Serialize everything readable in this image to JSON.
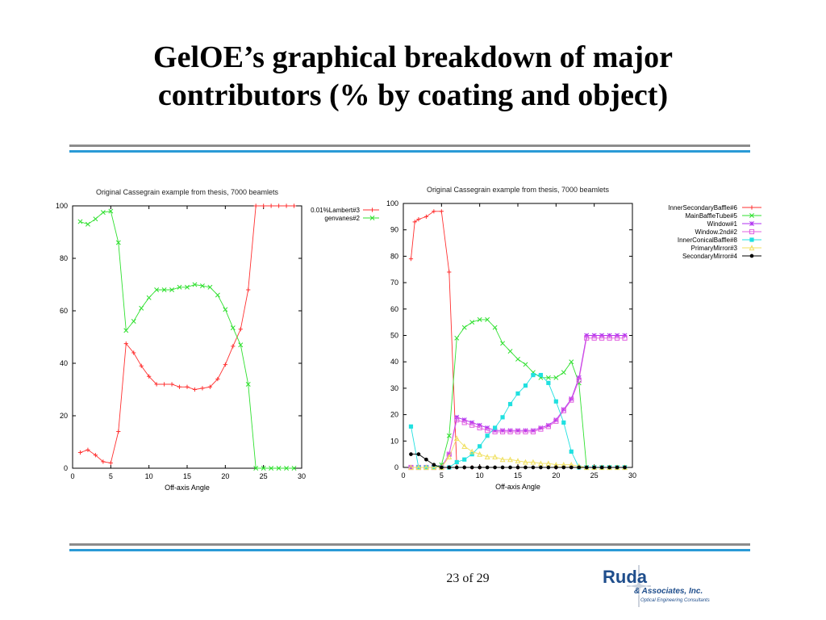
{
  "slide": {
    "title_line1": "GelOE’s graphical breakdown of major",
    "title_line2": "contributors (% by coating and object)",
    "page": "23 of 29"
  },
  "logo": {
    "main": "Ruda",
    "sub": "& Associates, Inc.",
    "tag": "Optical Engineering Consultants",
    "color": "#1f4e8c"
  },
  "chart_data": [
    {
      "type": "line",
      "title": "Original Cassegrain example from thesis, 7000 beamlets",
      "xlabel": "Off-axis Angle",
      "ylabel": "",
      "xlim": [
        0,
        30
      ],
      "ylim": [
        0,
        100
      ],
      "xticks": [
        0,
        5,
        10,
        15,
        20,
        25,
        30
      ],
      "yticks": [
        0,
        20,
        40,
        60,
        80,
        100
      ],
      "grid": false,
      "legend": "top-right outside",
      "series": [
        {
          "name": "0.01%Lambert#3",
          "color": "#ff3030",
          "marker": "plus",
          "x": [
            1,
            2,
            3,
            4,
            5,
            6,
            7,
            8,
            9,
            10,
            11,
            12,
            13,
            14,
            15,
            16,
            17,
            18,
            19,
            20,
            21,
            22,
            23,
            24,
            25,
            26,
            27,
            28,
            29
          ],
          "y": [
            6,
            7,
            5,
            2.5,
            2,
            14,
            47.5,
            44,
            39,
            35,
            32,
            32,
            32,
            31,
            31,
            30,
            30.5,
            31,
            34,
            39.5,
            46.5,
            53,
            68,
            100,
            100,
            100,
            100,
            100,
            100
          ]
        },
        {
          "name": "genvanes#2",
          "color": "#30e030",
          "marker": "cross",
          "x": [
            1,
            2,
            3,
            4,
            5,
            6,
            7,
            8,
            9,
            10,
            11,
            12,
            13,
            14,
            15,
            16,
            17,
            18,
            19,
            20,
            21,
            22,
            23,
            24,
            25,
            26,
            27,
            28,
            29
          ],
          "y": [
            94,
            93,
            95,
            97.5,
            98,
            86,
            52.5,
            56,
            61,
            65,
            68,
            68,
            68,
            69,
            69,
            70,
            69.5,
            69,
            66,
            60.5,
            53.5,
            47,
            32,
            0,
            0,
            0,
            0,
            0,
            0
          ]
        }
      ]
    },
    {
      "type": "line",
      "title": "Original Cassegrain example from thesis, 7000 beamlets",
      "xlabel": "Off-axis Angle",
      "ylabel": "",
      "xlim": [
        0,
        30
      ],
      "ylim": [
        0,
        100
      ],
      "xticks": [
        0,
        5,
        10,
        15,
        20,
        25,
        30
      ],
      "yticks": [
        0,
        10,
        20,
        30,
        40,
        50,
        60,
        70,
        80,
        90,
        100
      ],
      "grid": false,
      "legend": "top-right outside",
      "series": [
        {
          "name": "InnerSecondaryBaffle#6",
          "color": "#ff3030",
          "marker": "plus",
          "x": [
            1,
            1.5,
            2,
            3,
            4,
            5,
            6,
            7,
            8,
            9,
            10,
            15,
            20,
            25,
            29
          ],
          "y": [
            79,
            93,
            94,
            95,
            97,
            97,
            74,
            0,
            0,
            0,
            0,
            0,
            0,
            0,
            0
          ]
        },
        {
          "name": "MainBaffleTube#5",
          "color": "#30e030",
          "marker": "cross",
          "x": [
            1,
            2,
            3,
            4,
            5,
            6,
            7,
            8,
            9,
            10,
            11,
            12,
            13,
            14,
            15,
            16,
            17,
            18,
            19,
            20,
            21,
            22,
            23,
            24,
            25,
            26,
            27,
            28,
            29
          ],
          "y": [
            0,
            0,
            0,
            0,
            1,
            12,
            49,
            53,
            55,
            56,
            56,
            53,
            47,
            44,
            41,
            39,
            36,
            34,
            34,
            34,
            36,
            40,
            32,
            0,
            0,
            0,
            0,
            0,
            0
          ]
        },
        {
          "name": "Window#1",
          "color": "#b030f0",
          "marker": "star",
          "x": [
            1,
            2,
            3,
            4,
            5,
            6,
            7,
            8,
            9,
            10,
            11,
            12,
            13,
            14,
            15,
            16,
            17,
            18,
            19,
            20,
            21,
            22,
            23,
            24,
            25,
            26,
            27,
            28,
            29
          ],
          "y": [
            0,
            0,
            0,
            0,
            0,
            5,
            19,
            18,
            17,
            16,
            15,
            14,
            14,
            14,
            14,
            14,
            14,
            15,
            16,
            18,
            22,
            26,
            34,
            50,
            50,
            50,
            50,
            50,
            50
          ]
        },
        {
          "name": "Window.2nd#2",
          "color": "#e060e0",
          "marker": "open-square",
          "x": [
            1,
            2,
            3,
            4,
            5,
            6,
            7,
            8,
            9,
            10,
            11,
            12,
            13,
            14,
            15,
            16,
            17,
            18,
            19,
            20,
            21,
            22,
            23,
            24,
            25,
            26,
            27,
            28,
            29
          ],
          "y": [
            0,
            0,
            0,
            0,
            0,
            5,
            18,
            17,
            16,
            15,
            14,
            13.5,
            13.5,
            13.5,
            13.5,
            13.5,
            13.5,
            14.5,
            15.5,
            17.5,
            21.5,
            25.5,
            33,
            49,
            49,
            49,
            49,
            49,
            49
          ]
        },
        {
          "name": "InnerConicalBaffle#8",
          "color": "#20e0e0",
          "marker": "filled-square",
          "x": [
            1,
            2,
            3,
            4,
            5,
            6,
            7,
            8,
            9,
            10,
            11,
            12,
            13,
            14,
            15,
            16,
            17,
            18,
            19,
            20,
            21,
            22,
            23,
            24,
            25,
            26,
            27,
            28,
            29
          ],
          "y": [
            15.5,
            0,
            0,
            0,
            0,
            0,
            2,
            3,
            5,
            8,
            12,
            15,
            19,
            24,
            28,
            31,
            35,
            35,
            32,
            25,
            17,
            6,
            0,
            0,
            0,
            0,
            0,
            0,
            0
          ]
        },
        {
          "name": "PrimaryMirror#3",
          "color": "#f0e060",
          "marker": "triangle",
          "x": [
            1,
            2,
            3,
            4,
            5,
            6,
            7,
            8,
            9,
            10,
            11,
            12,
            13,
            14,
            15,
            16,
            17,
            18,
            19,
            20,
            21,
            22,
            23,
            24,
            25,
            26,
            27,
            28,
            29
          ],
          "y": [
            0,
            0,
            0,
            0,
            0,
            4,
            11,
            8,
            6,
            5,
            4,
            4,
            3,
            3,
            2.5,
            2,
            2,
            1.5,
            1.5,
            1,
            1,
            1,
            0.5,
            0,
            0,
            0,
            0,
            0,
            0
          ]
        },
        {
          "name": "SecondaryMirror#4",
          "color": "#000000",
          "marker": "filled-circle",
          "x": [
            1,
            2,
            3,
            4,
            5,
            6,
            7,
            8,
            9,
            10,
            11,
            12,
            13,
            14,
            15,
            16,
            17,
            18,
            19,
            20,
            21,
            22,
            23,
            24,
            25,
            26,
            27,
            28,
            29
          ],
          "y": [
            5,
            5,
            3,
            1,
            0,
            0,
            0,
            0,
            0,
            0,
            0,
            0,
            0,
            0,
            0,
            0,
            0,
            0,
            0,
            0,
            0,
            0,
            0,
            0,
            0,
            0,
            0,
            0,
            0
          ]
        }
      ]
    }
  ]
}
